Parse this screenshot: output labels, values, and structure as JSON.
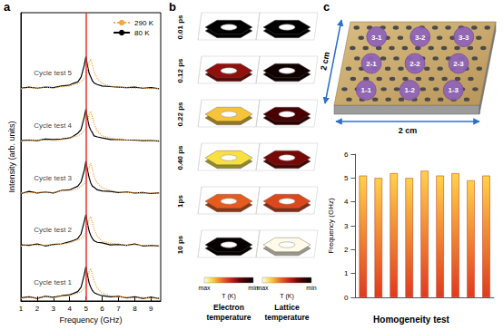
{
  "panel_labels": [
    "a",
    "b",
    "c"
  ],
  "chart_data": [
    {
      "type": "line",
      "xlabel": "Frequency (GHz)",
      "ylabel": "Intensity (arb. units)",
      "x": [
        1,
        1.5,
        2,
        2.5,
        3,
        3.5,
        4,
        4.2,
        4.5,
        4.7,
        4.9,
        5,
        5.1,
        5.2,
        5.3,
        5.4,
        5.5,
        5.7,
        6,
        6.5,
        7,
        7.5,
        8,
        8.5,
        9,
        9.5
      ],
      "xlim": [
        1,
        9.6
      ],
      "xticks": [
        1,
        2,
        3,
        4,
        5,
        6,
        7,
        8,
        9
      ],
      "ylim": [
        0,
        5.5
      ],
      "tick_labels": "x",
      "grid": false,
      "legend": "top-right",
      "reference_line": {
        "x": 5,
        "color": "#e8322c"
      },
      "groups": [
        {
          "label": "Cycle test 1",
          "series": [
            {
              "name": "290 K",
              "color": "#f5a742",
              "line_style": "dotted",
              "values": [
                0.05,
                0.07,
                0.06,
                0.08,
                0.06,
                0.09,
                0.1,
                0.12,
                0.15,
                0.18,
                0.24,
                0.3,
                0.42,
                0.56,
                0.62,
                0.5,
                0.38,
                0.24,
                0.15,
                0.1,
                0.08,
                0.07,
                0.06,
                0.07,
                0.05,
                0.06
              ]
            },
            {
              "name": "80 K",
              "color": "#000000",
              "line_style": "solid",
              "values": [
                0.06,
                0.08,
                0.05,
                0.09,
                0.07,
                0.1,
                0.12,
                0.14,
                0.18,
                0.26,
                0.5,
                0.66,
                0.48,
                0.34,
                0.26,
                0.2,
                0.16,
                0.13,
                0.1,
                0.08,
                0.09,
                0.06,
                0.08,
                0.05,
                0.07,
                0.05
              ]
            }
          ]
        },
        {
          "label": "Cycle test 2",
          "series": [
            {
              "name": "290 K",
              "color": "#f5a742",
              "line_style": "dotted",
              "values": [
                1.05,
                1.08,
                1.06,
                1.07,
                1.07,
                1.08,
                1.11,
                1.13,
                1.16,
                1.19,
                1.25,
                1.31,
                1.43,
                1.57,
                1.61,
                1.49,
                1.37,
                1.23,
                1.14,
                1.1,
                1.09,
                1.06,
                1.07,
                1.06,
                1.06,
                1.05
              ]
            },
            {
              "name": "80 K",
              "color": "#000000",
              "line_style": "solid",
              "values": [
                1.07,
                1.06,
                1.09,
                1.05,
                1.08,
                1.09,
                1.13,
                1.15,
                1.19,
                1.28,
                1.52,
                1.65,
                1.47,
                1.33,
                1.25,
                1.19,
                1.15,
                1.12,
                1.11,
                1.07,
                1.08,
                1.06,
                1.09,
                1.05,
                1.06,
                1.05
              ]
            }
          ]
        },
        {
          "label": "Cycle test 3",
          "series": [
            {
              "name": "290 K",
              "color": "#f5a742",
              "line_style": "dotted",
              "values": [
                2.06,
                2.06,
                2.07,
                2.08,
                2.07,
                2.1,
                2.11,
                2.12,
                2.14,
                2.19,
                2.23,
                2.31,
                2.44,
                2.55,
                2.63,
                2.51,
                2.37,
                2.25,
                2.16,
                2.11,
                2.08,
                2.07,
                2.07,
                2.06,
                2.06,
                2.05
              ]
            },
            {
              "name": "80 K",
              "color": "#000000",
              "line_style": "solid",
              "values": [
                2.05,
                2.09,
                2.06,
                2.08,
                2.06,
                2.11,
                2.12,
                2.15,
                2.19,
                2.27,
                2.49,
                2.67,
                2.49,
                2.35,
                2.25,
                2.19,
                2.17,
                2.12,
                2.1,
                2.09,
                2.07,
                2.08,
                2.06,
                2.07,
                2.05,
                2.06
              ]
            }
          ]
        },
        {
          "label": "Cycle test 4",
          "series": [
            {
              "name": "290 K",
              "color": "#f5a742",
              "line_style": "dotted",
              "values": [
                3.05,
                3.06,
                3.07,
                3.07,
                3.06,
                3.08,
                3.1,
                3.13,
                3.15,
                3.18,
                3.25,
                3.29,
                3.41,
                3.56,
                3.62,
                3.5,
                3.39,
                3.24,
                3.15,
                3.11,
                3.08,
                3.07,
                3.06,
                3.07,
                3.05,
                3.06
              ]
            },
            {
              "name": "80 K",
              "color": "#000000",
              "line_style": "solid",
              "values": [
                3.06,
                3.07,
                3.06,
                3.09,
                3.08,
                3.09,
                3.11,
                3.14,
                3.2,
                3.27,
                3.51,
                3.66,
                3.47,
                3.33,
                3.26,
                3.21,
                3.15,
                3.13,
                3.11,
                3.08,
                3.08,
                3.07,
                3.07,
                3.06,
                3.06,
                3.05
              ]
            }
          ]
        },
        {
          "label": "Cycle test 5",
          "series": [
            {
              "name": "290 K",
              "color": "#f5a742",
              "line_style": "dotted",
              "values": [
                4.05,
                4.07,
                4.06,
                4.08,
                4.06,
                4.09,
                4.1,
                4.12,
                4.15,
                4.19,
                4.24,
                4.3,
                4.43,
                4.56,
                4.62,
                4.5,
                4.38,
                4.24,
                4.15,
                4.1,
                4.08,
                4.07,
                4.06,
                4.07,
                4.05,
                4.06
              ]
            },
            {
              "name": "80 K",
              "color": "#000000",
              "line_style": "solid",
              "values": [
                4.06,
                4.08,
                4.06,
                4.08,
                4.07,
                4.1,
                4.12,
                4.15,
                4.18,
                4.27,
                4.5,
                4.67,
                4.48,
                4.34,
                4.27,
                4.2,
                4.16,
                4.13,
                4.1,
                4.09,
                4.08,
                4.07,
                4.08,
                4.06,
                4.07,
                4.05
              ]
            }
          ]
        }
      ]
    },
    {
      "type": "bar",
      "title": "Homogeneity test",
      "ylabel": "Frequency (GHz)",
      "categories": [
        null,
        null,
        null,
        null,
        null,
        null,
        null,
        null,
        null
      ],
      "values": [
        5.1,
        5.0,
        5.2,
        5.0,
        5.3,
        5.1,
        5.2,
        4.9,
        5.1
      ],
      "color": "#e03a1e",
      "ylim": [
        0,
        6
      ],
      "yticks": [
        0,
        1,
        2,
        3,
        4,
        5,
        6
      ],
      "grid": false
    }
  ],
  "simulation": {
    "times": [
      "0.01 ps",
      "0.12 ps",
      "0.22 ps",
      "0.40 ps",
      "1ps",
      "10 ps"
    ],
    "columns": [
      {
        "label": "Electron temperature",
        "levels": [
          0.0,
          0.35,
          0.8,
          0.85,
          0.6,
          0.02
        ]
      },
      {
        "label": "Lattice temperature",
        "levels": [
          0.0,
          0.05,
          0.2,
          0.3,
          0.55,
          1.0
        ]
      }
    ],
    "colorbar": {
      "label": "T (K)",
      "range": [
        0,
        1
      ],
      "ticks": [
        {
          "value": 0,
          "label": "min"
        },
        {
          "value": 1,
          "label": "max"
        }
      ]
    }
  },
  "sample": {
    "points": [
      [
        "3-1",
        "3-2",
        "3-3"
      ],
      [
        "2-1",
        "2-2",
        "2-3"
      ],
      [
        "1-1",
        "1-2",
        "1-3"
      ]
    ],
    "dimensions": [
      "2 cm",
      "2 cm"
    ]
  }
}
